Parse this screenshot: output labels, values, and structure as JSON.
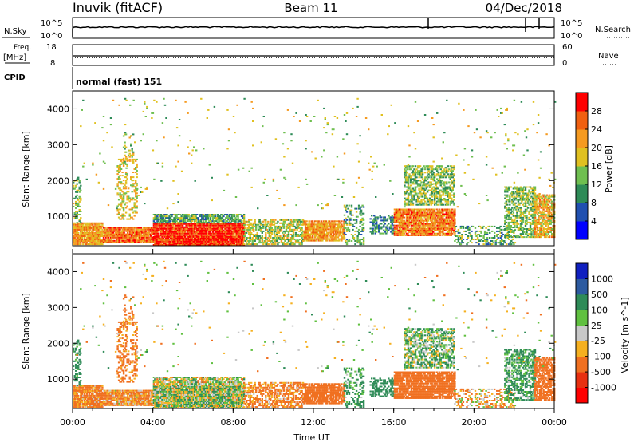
{
  "header": {
    "station": "Inuvik (fitACF)",
    "beam": "Beam 11",
    "date": "04/Dec/2018"
  },
  "top_panel": {
    "nsky_label": "N.Sky",
    "nsky_hi": "10^5",
    "nsky_lo": "10^0",
    "nsearch_label": "N.Search",
    "nsearch_hi": "10^5",
    "nsearch_lo": "10^0",
    "freq_label": "Freq.",
    "freq_unit": "[MHz]",
    "freq_hi": "18",
    "freq_lo": "8",
    "nave_label": "Nave",
    "nave_hi": "60",
    "nave_lo": "0",
    "cpid_label": "CPID",
    "cpid_value": "normal (fast) 151"
  },
  "chart_data": [
    {
      "type": "heatmap",
      "name": "power",
      "xlabel": "",
      "ylabel": "Slant Range [km]",
      "xlim": [
        0,
        24
      ],
      "ylim": [
        180,
        4500
      ],
      "yticks": [
        "1000",
        "2000",
        "3000",
        "4000"
      ],
      "colorbar_label": "Power [dB]",
      "colorbar_ticks": [
        "4",
        "8",
        "12",
        "16",
        "20",
        "24",
        "28"
      ],
      "colorbar_colors": [
        "#0000ff",
        "#2050b0",
        "#2e8b57",
        "#6fbf50",
        "#e0c020",
        "#f59a20",
        "#f06010",
        "#ff0000"
      ],
      "colorbar_range": [
        0,
        32
      ]
    },
    {
      "type": "heatmap",
      "name": "velocity",
      "xlabel": "Time UT",
      "ylabel": "Slant Range [km]",
      "xlim": [
        0,
        24
      ],
      "xticks": [
        "00:00",
        "04:00",
        "08:00",
        "12:00",
        "16:00",
        "20:00",
        "00:00"
      ],
      "ylim": [
        180,
        4500
      ],
      "yticks": [
        "1000",
        "2000",
        "3000",
        "4000"
      ],
      "colorbar_label": "Velocity [m s^-1]",
      "colorbar_ticks": [
        "1000",
        "500",
        "100",
        "25",
        "-25",
        "-100",
        "-500",
        "-1000"
      ],
      "colorbar_colors": [
        "#1020c0",
        "#2c5aa0",
        "#2e8b57",
        "#60c040",
        "#c8c8c8",
        "#f5b020",
        "#f07020",
        "#e83010",
        "#ff0000"
      ]
    }
  ]
}
